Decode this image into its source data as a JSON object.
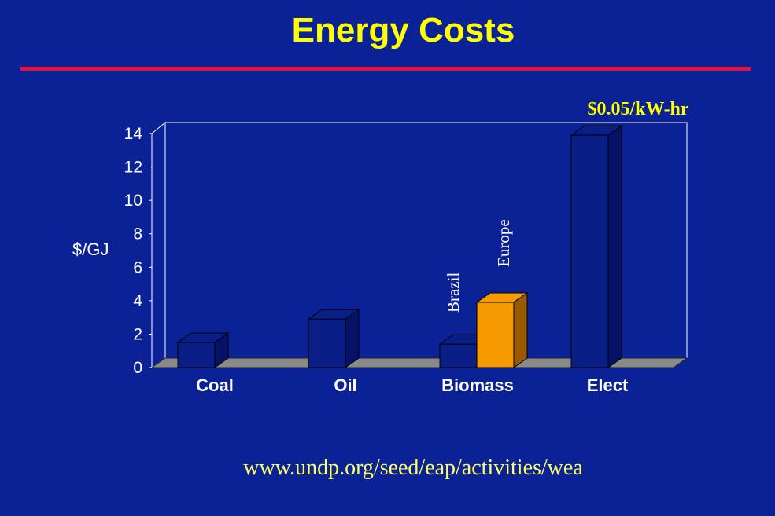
{
  "slide": {
    "title": "Energy Costs",
    "source_url": "www.undp.org/seed/eap/activities/wea"
  },
  "colors": {
    "background": "#0a2296",
    "title": "#ffff00",
    "rule": "#e8103c",
    "bar_front": "#0a1e88",
    "bar_side": "#061266",
    "europe_front": "#f59a00",
    "europe_side": "#9a5a00",
    "floor": "#8a8a8a"
  },
  "chart_data": {
    "type": "bar",
    "title": "",
    "xlabel": "",
    "ylabel": "$/GJ",
    "ylim": [
      0,
      14
    ],
    "yticks": [
      0,
      2,
      4,
      6,
      8,
      10,
      12,
      14
    ],
    "categories": [
      "Coal",
      "Oil",
      "Biomass",
      "Elect"
    ],
    "bars": [
      {
        "category": "Coal",
        "value": 1.5,
        "label": ""
      },
      {
        "category": "Oil",
        "value": 2.9,
        "label": ""
      },
      {
        "category": "Biomass",
        "value": 1.4,
        "label": "Brazil"
      },
      {
        "category": "Biomass",
        "value": 3.9,
        "label": "Europe",
        "highlight": true
      },
      {
        "category": "Elect",
        "value": 13.9,
        "label": ""
      }
    ],
    "annotations": [
      "$0.05/kW-hr"
    ]
  }
}
